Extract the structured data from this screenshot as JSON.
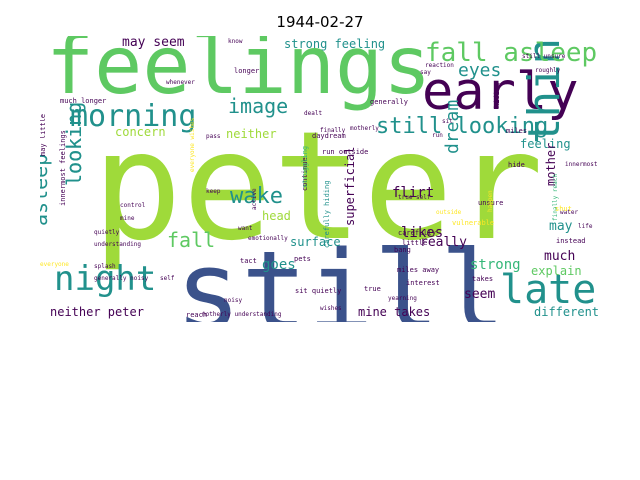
{
  "title": "1944-02-27",
  "colors": {
    "yellow": "#fde725",
    "lime": "#9fda3a",
    "green": "#5ec962",
    "teal": "#35b779",
    "cyan": "#21918c",
    "blue": "#31688e",
    "indigo": "#3b528b",
    "purple": "#440154"
  },
  "words": [
    "peter",
    "still",
    "feelings",
    "early",
    "think",
    "late",
    "night",
    "morning",
    "fall asleep",
    "looking",
    "still looking",
    "asleep",
    "looking",
    "image",
    "wake",
    "fall",
    "dream",
    "eyes",
    "may seem",
    "strong feeling",
    "concern",
    "neither",
    "feeling",
    "mother",
    "head",
    "goes",
    "surface",
    "superficial",
    "flirt",
    "likes",
    "really",
    "strong",
    "much",
    "explain",
    "seem",
    "may",
    "active interest",
    "neither peter",
    "mine takes",
    "different",
    "innermost feelings",
    "everyone",
    "whenever",
    "much longer",
    "know",
    "longer",
    "generally",
    "dealt",
    "motherly",
    "daydream",
    "run outside",
    "continue",
    "struggling",
    "carefully hiding",
    "true self",
    "sit",
    "run",
    "reaction",
    "say",
    "still unsure",
    "roughly",
    "hiding",
    "miles",
    "hide",
    "innermost",
    "unsure",
    "water",
    "finally reach",
    "instead",
    "vulnerable",
    "life",
    "shut",
    "outside",
    "happen",
    "carefully",
    "little",
    "bang",
    "takes",
    "tact",
    "pets",
    "miles away",
    "interest",
    "sit quietly",
    "true",
    "yearning",
    "wishes",
    "reach",
    "motherly understanding",
    "noisy",
    "self",
    "splash",
    "generally noisy",
    "understanding",
    "quietly",
    "control",
    "mine",
    "everyone wishes",
    "pass",
    "keep",
    "want",
    "emotionally",
    "active",
    "finally",
    "may little"
  ]
}
